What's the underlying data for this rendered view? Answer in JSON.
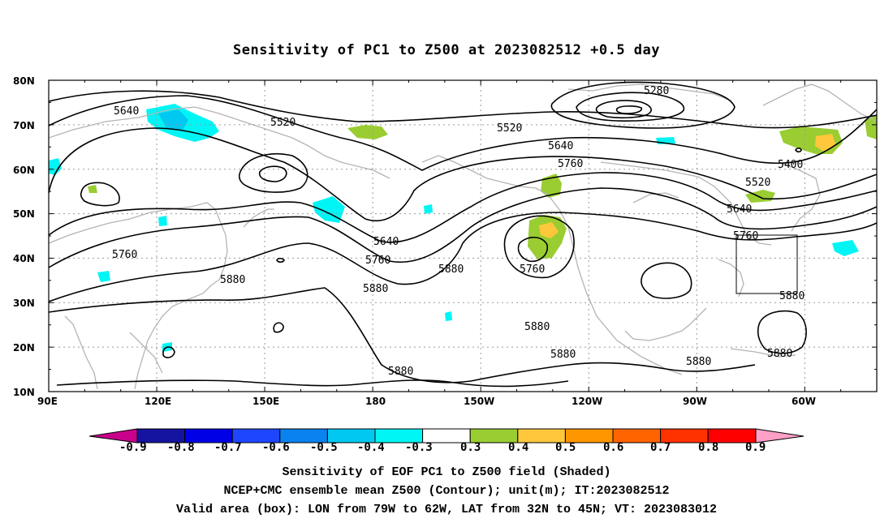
{
  "title": "Sensitivity of PC1 to Z500 at 2023082512 +0.5 day",
  "map": {
    "lat_ticks": [
      "80N",
      "70N",
      "60N",
      "50N",
      "40N",
      "30N",
      "20N",
      "10N"
    ],
    "lon_ticks": [
      "90E",
      "120E",
      "150E",
      "180",
      "150W",
      "120W",
      "90W",
      "60W"
    ],
    "lat_range": [
      10,
      80
    ],
    "lon_range_east": [
      90,
      320
    ],
    "grid": "dotted",
    "valid_box": {
      "lon_w": -79,
      "lon_e": -62,
      "lat_s": 32,
      "lat_n": 45
    },
    "contour_labels": [
      "5280",
      "5400",
      "5520",
      "5520",
      "5520",
      "5640",
      "5640",
      "5640",
      "5640",
      "5760",
      "5760",
      "5760",
      "5760",
      "5760",
      "5880",
      "5880",
      "5880",
      "5880",
      "5880",
      "5880",
      "5880",
      "5880"
    ],
    "colors": {
      "coast": "#b4b4b4",
      "grid": "#9a9a9a",
      "contour": "#000000",
      "cyan": "#00f5f5",
      "light_blue": "#00c8f0",
      "green": "#9acd32",
      "yellow": "#ffc83c"
    }
  },
  "colorbar": {
    "tick_labels": [
      "-0.9",
      "-0.8",
      "-0.7",
      "-0.6",
      "-0.5",
      "-0.4",
      "-0.3",
      "0.3",
      "0.4",
      "0.5",
      "0.6",
      "0.7",
      "0.8",
      "0.9"
    ],
    "colors": [
      "#c8008c",
      "#1414a0",
      "#0000e6",
      "#1e46ff",
      "#0a82f0",
      "#00c8f0",
      "#00f5f5",
      "#ffffff",
      "#9acd32",
      "#ffc83c",
      "#ff9600",
      "#ff6400",
      "#ff3200",
      "#ff0000",
      "#ffa0c8"
    ]
  },
  "captions": {
    "line1": "Sensitivity of EOF PC1 to Z500 field (Shaded)",
    "line2": "NCEP+CMC ensemble mean Z500 (Contour); unit(m); IT:2023082512",
    "line3": "Valid area (box): LON from 79W to 62W, LAT from 32N to 45N; VT: 2023083012"
  }
}
